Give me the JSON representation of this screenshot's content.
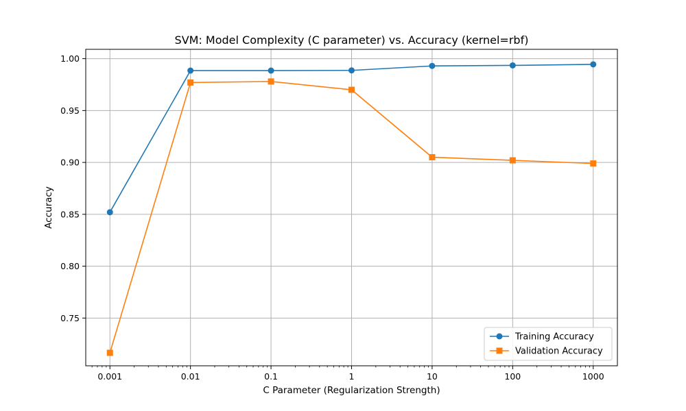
{
  "chart_data": {
    "type": "line",
    "title": "SVM: Model Complexity (C parameter) vs. Accuracy (kernel=rbf)",
    "xlabel": "C Parameter (Regularization Strength)",
    "ylabel": "Accuracy",
    "xscale": "log",
    "x": [
      0.001,
      0.01,
      0.1,
      1,
      10,
      100,
      1000
    ],
    "x_tick_labels": [
      "0.001",
      "0.01",
      "0.1",
      "1",
      "10",
      "100",
      "1000"
    ],
    "y_ticks": [
      0.75,
      0.8,
      0.85,
      0.9,
      0.95,
      1.0
    ],
    "y_tick_labels": [
      "0.75",
      "0.80",
      "0.85",
      "0.90",
      "0.95",
      "1.00"
    ],
    "ylim": [
      0.704,
      1.009
    ],
    "grid": true,
    "legend_position": "lower right",
    "series": [
      {
        "name": "Training Accuracy",
        "color": "#1f77b4",
        "marker": "circle",
        "values": [
          0.852,
          0.9885,
          0.9885,
          0.9887,
          0.993,
          0.9935,
          0.9945
        ]
      },
      {
        "name": "Validation Accuracy",
        "color": "#ff7f0e",
        "marker": "square",
        "values": [
          0.7165,
          0.977,
          0.978,
          0.97,
          0.905,
          0.902,
          0.899
        ]
      }
    ]
  }
}
